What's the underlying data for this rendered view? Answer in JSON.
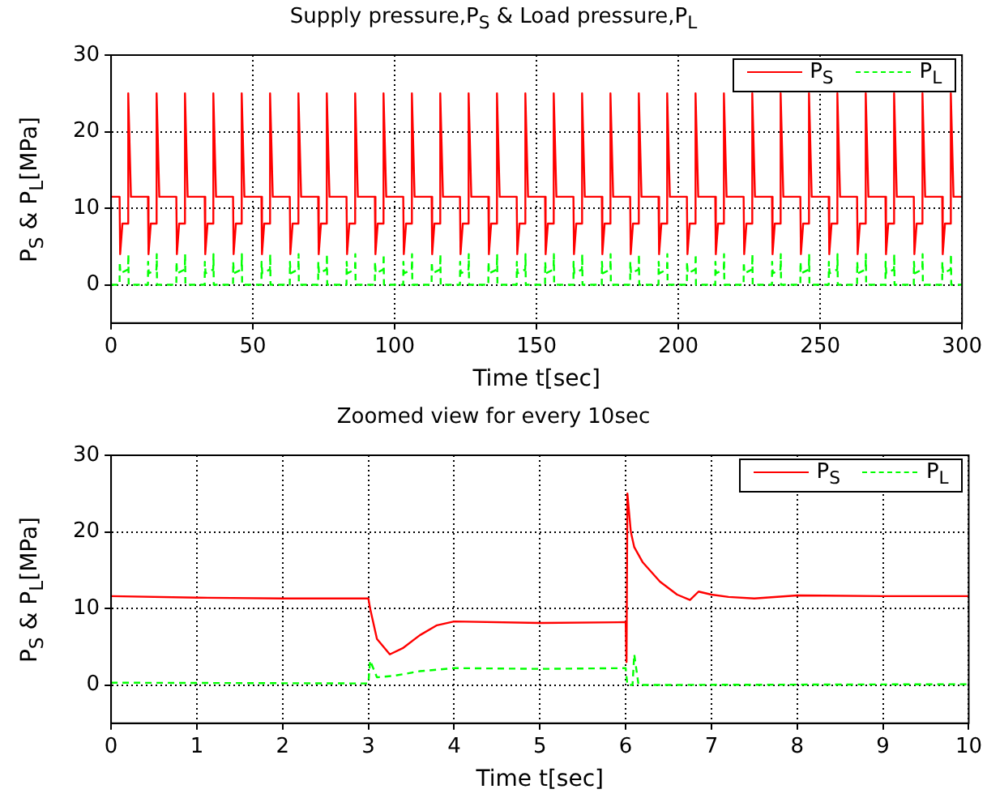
{
  "chart_data": [
    {
      "type": "line",
      "title": "Supply pressure,P$_{S}$ & Load pressure,P$_{L}$",
      "xlabel": "Time t[sec]",
      "ylabel": "P$_{S}$ & P$_{L}$[MPa]",
      "xlim": [
        0,
        300
      ],
      "xticks": [
        0,
        50,
        100,
        150,
        200,
        250,
        300
      ],
      "ylim": [
        -5,
        30
      ],
      "yticks": [
        0,
        10,
        20,
        30
      ],
      "grid": true,
      "legend": "top right",
      "series": [
        {
          "name": "P$_{S}$",
          "color": "#ff0000",
          "line_style": "solid",
          "x": [
            0,
            3,
            3.2,
            4,
            6,
            6.05,
            7,
            13,
            13.2,
            14,
            16,
            16.05,
            17,
            23,
            23.2,
            24,
            26,
            26.05,
            27,
            33,
            33.2,
            34,
            36,
            36.05,
            37,
            43,
            43.2,
            44,
            46,
            46.05,
            47,
            53,
            53.2,
            54,
            56,
            56.05,
            57,
            63,
            63.2,
            64,
            66,
            66.05,
            67,
            73,
            73.2,
            74,
            76,
            76.05,
            77,
            83,
            83.2,
            84,
            86,
            86.05,
            87,
            93,
            93.2,
            94,
            96,
            96.05,
            97,
            103,
            103.2,
            104,
            106,
            106.05,
            107,
            113,
            113.2,
            114,
            116,
            116.05,
            117,
            123,
            123.2,
            124,
            126,
            126.05,
            127,
            133,
            133.2,
            134,
            136,
            136.05,
            137,
            143,
            143.2,
            144,
            146,
            146.05,
            147,
            153,
            153.2,
            154,
            156,
            156.05,
            157,
            163,
            163.2,
            164,
            166,
            166.05,
            167,
            173,
            173.2,
            174,
            176,
            176.05,
            177,
            183,
            183.2,
            184,
            186,
            186.05,
            187,
            193,
            193.2,
            194,
            196,
            196.05,
            197,
            203,
            203.2,
            204,
            206,
            206.05,
            207,
            213,
            213.2,
            214,
            216,
            216.05,
            217,
            223,
            223.2,
            224,
            226,
            226.05,
            227,
            233,
            233.2,
            234,
            236,
            236.05,
            237,
            243,
            243.2,
            244,
            246,
            246.05,
            247,
            253,
            253.2,
            254,
            256,
            256.05,
            257,
            263,
            263.2,
            264,
            266,
            266.05,
            267,
            273,
            273.2,
            274,
            276,
            276.05,
            277,
            283,
            283.2,
            284,
            286,
            286.05,
            287,
            293,
            293.2,
            294,
            296,
            296.05,
            297,
            300
          ],
          "values": [
            11.5,
            11.5,
            4,
            8,
            8,
            25,
            11.5,
            11.5,
            4,
            8,
            8,
            25,
            11.5,
            11.5,
            4,
            8,
            8,
            25,
            11.5,
            11.5,
            4,
            8,
            8,
            25,
            11.5,
            11.5,
            4,
            8,
            8,
            25,
            11.5,
            11.5,
            4,
            8,
            8,
            25,
            11.5,
            11.5,
            4,
            8,
            8,
            25,
            11.5,
            11.5,
            4,
            8,
            8,
            25,
            11.5,
            11.5,
            4,
            8,
            8,
            25,
            11.5,
            11.5,
            4,
            8,
            8,
            25,
            11.5,
            11.5,
            4,
            8,
            8,
            25,
            11.5,
            11.5,
            4,
            8,
            8,
            25,
            11.5,
            11.5,
            4,
            8,
            8,
            25,
            11.5,
            11.5,
            4,
            8,
            8,
            25,
            11.5,
            11.5,
            4,
            8,
            8,
            25,
            11.5,
            11.5,
            4,
            8,
            8,
            25,
            11.5,
            11.5,
            4,
            8,
            8,
            25,
            11.5,
            11.5,
            4,
            8,
            8,
            25,
            11.5,
            11.5,
            4,
            8,
            8,
            25,
            11.5,
            11.5,
            4,
            8,
            8,
            25,
            11.5,
            11.5,
            4,
            8,
            8,
            25,
            11.5,
            11.5,
            4,
            8,
            8,
            25,
            11.5,
            11.5,
            4,
            8,
            8,
            25,
            11.5,
            11.5,
            4,
            8,
            8,
            25,
            11.5,
            11.5,
            4,
            8,
            8,
            25,
            11.5,
            11.5,
            4,
            8,
            8,
            25,
            11.5,
            11.5,
            4,
            8,
            8,
            25,
            11.5,
            11.5,
            4,
            8,
            8,
            25,
            11.5,
            11.5,
            4,
            8,
            8,
            25,
            11.5,
            11.5,
            4,
            8,
            8,
            25,
            11.5,
            11.5
          ]
        },
        {
          "name": "P$_{L}$",
          "color": "#00ff00",
          "line_style": "dashed",
          "x": [
            0,
            3,
            3.05,
            3.3,
            6,
            6.1,
            6.2,
            13,
            13.05,
            13.3,
            16,
            16.1,
            16.2,
            23,
            23.05,
            23.3,
            26,
            26.1,
            26.2,
            33,
            33.05,
            33.3,
            36,
            36.1,
            36.2,
            43,
            43.05,
            43.3,
            46,
            46.1,
            46.2,
            53,
            53.05,
            53.3,
            56,
            56.1,
            56.2,
            63,
            63.05,
            63.3,
            66,
            66.1,
            66.2,
            73,
            73.05,
            73.3,
            76,
            76.1,
            76.2,
            83,
            83.05,
            83.3,
            86,
            86.1,
            86.2,
            93,
            93.05,
            93.3,
            96,
            96.1,
            96.2,
            103,
            103.05,
            103.3,
            106,
            106.1,
            106.2,
            113,
            113.05,
            113.3,
            116,
            116.1,
            116.2,
            123,
            123.05,
            123.3,
            126,
            126.1,
            126.2,
            133,
            133.05,
            133.3,
            136,
            136.1,
            136.2,
            143,
            143.05,
            143.3,
            146,
            146.1,
            146.2,
            153,
            153.05,
            153.3,
            156,
            156.1,
            156.2,
            163,
            163.05,
            163.3,
            166,
            166.1,
            166.2,
            173,
            173.05,
            173.3,
            176,
            176.1,
            176.2,
            183,
            183.05,
            183.3,
            186,
            186.1,
            186.2,
            193,
            193.05,
            193.3,
            196,
            196.1,
            196.2,
            203,
            203.05,
            203.3,
            206,
            206.1,
            206.2,
            213,
            213.05,
            213.3,
            216,
            216.1,
            216.2,
            223,
            223.05,
            223.3,
            226,
            226.1,
            226.2,
            233,
            233.05,
            233.3,
            236,
            236.1,
            236.2,
            243,
            243.05,
            243.3,
            246,
            246.1,
            246.2,
            253,
            253.05,
            253.3,
            256,
            256.1,
            256.2,
            263,
            263.05,
            263.3,
            266,
            266.1,
            266.2,
            273,
            273.05,
            273.3,
            276,
            276.1,
            276.2,
            283,
            283.05,
            283.3,
            286,
            286.1,
            286.2,
            293,
            293.05,
            293.3,
            296,
            296.1,
            296.2,
            300
          ],
          "values": [
            0,
            0,
            3,
            1.5,
            2,
            4,
            0,
            0,
            3,
            1.5,
            2,
            4,
            0,
            0,
            3,
            1.5,
            2,
            4,
            0,
            0,
            3,
            1.5,
            2,
            4,
            0,
            0,
            3,
            1.5,
            2,
            4,
            0,
            0,
            3,
            1.5,
            2,
            4,
            0,
            0,
            3,
            1.5,
            2,
            4,
            0,
            0,
            3,
            1.5,
            2,
            4,
            0,
            0,
            3,
            1.5,
            2,
            4,
            0,
            0,
            3,
            1.5,
            2,
            4,
            0,
            0,
            3,
            1.5,
            2,
            4,
            0,
            0,
            3,
            1.5,
            2,
            4,
            0,
            0,
            3,
            1.5,
            2,
            4,
            0,
            0,
            3,
            1.5,
            2,
            4,
            0,
            0,
            3,
            1.5,
            2,
            4,
            0,
            0,
            3,
            1.5,
            2,
            4,
            0,
            0,
            3,
            1.5,
            2,
            4,
            0,
            0,
            3,
            1.5,
            2,
            4,
            0,
            0,
            3,
            1.5,
            2,
            4,
            0,
            0,
            3,
            1.5,
            2,
            4,
            0,
            0,
            3,
            1.5,
            2,
            4,
            0,
            0,
            3,
            1.5,
            2,
            4,
            0,
            0,
            3,
            1.5,
            2,
            4,
            0,
            0,
            3,
            1.5,
            2,
            4,
            0,
            0,
            3,
            1.5,
            2,
            4,
            0,
            0,
            3,
            1.5,
            2,
            4,
            0,
            0,
            3,
            1.5,
            2,
            4,
            0,
            0,
            3,
            1.5,
            2,
            4,
            0,
            0,
            3,
            1.5,
            2,
            4,
            0,
            0,
            3,
            1.5,
            2,
            4,
            0,
            0
          ]
        }
      ]
    },
    {
      "type": "line",
      "title": "Zoomed view for every 10sec",
      "xlabel": "Time t[sec]",
      "ylabel": "P$_{S}$ & P$_{L}$[MPa]",
      "xlim": [
        0,
        10
      ],
      "xticks": [
        0,
        1,
        2,
        3,
        4,
        5,
        6,
        7,
        8,
        9,
        10
      ],
      "ylim": [
        -5,
        30
      ],
      "yticks": [
        0,
        10,
        20,
        30
      ],
      "grid": true,
      "legend": "top right",
      "series": [
        {
          "name": "P$_{S}$",
          "color": "#ff0000",
          "line_style": "solid",
          "x": [
            0,
            1,
            2,
            3,
            3.02,
            3.1,
            3.25,
            3.4,
            3.6,
            3.8,
            4,
            5,
            6,
            6.01,
            6.02,
            6.06,
            6.1,
            6.2,
            6.4,
            6.6,
            6.75,
            6.85,
            7,
            7.2,
            7.5,
            8,
            9,
            10
          ],
          "values": [
            11.6,
            11.4,
            11.3,
            11.3,
            10,
            6,
            4,
            4.8,
            6.5,
            7.8,
            8.3,
            8.1,
            8.2,
            3,
            25,
            20,
            18,
            16,
            13.5,
            11.8,
            11.1,
            12.2,
            11.8,
            11.5,
            11.3,
            11.7,
            11.6,
            11.6
          ]
        },
        {
          "name": "P$_{L}$",
          "color": "#00ff00",
          "line_style": "dashed",
          "x": [
            0,
            3,
            3.02,
            3.1,
            3.3,
            3.6,
            4,
            5,
            6,
            6.02,
            6.08,
            6.1,
            6.15,
            10
          ],
          "values": [
            0.3,
            0.2,
            3.2,
            1,
            1.2,
            1.8,
            2.2,
            2.1,
            2.2,
            0,
            0,
            4,
            0,
            0.1
          ]
        }
      ]
    }
  ]
}
